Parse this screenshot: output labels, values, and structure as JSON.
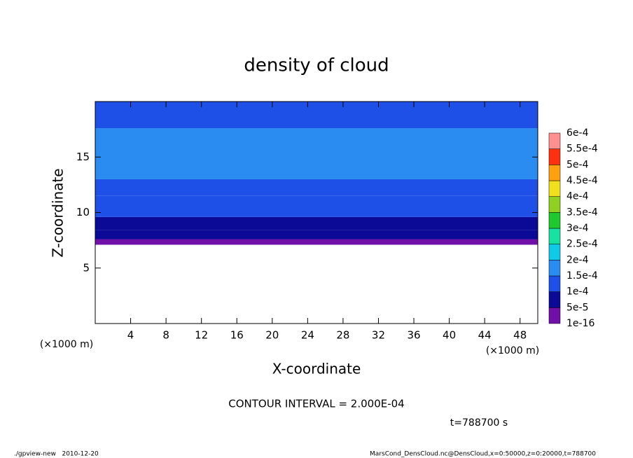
{
  "chart_data": {
    "type": "contour",
    "title": "density of cloud",
    "x_label": "X-coordinate",
    "y_label": "Z-coordinate",
    "x_unit": "(×1000 m)",
    "y_unit": "(×1000 m)",
    "xlim": [
      0,
      50
    ],
    "ylim": [
      0,
      20
    ],
    "xticks": [
      4,
      8,
      12,
      16,
      20,
      24,
      28,
      32,
      36,
      40,
      44,
      48
    ],
    "yticks": [
      5,
      10,
      15
    ],
    "profile": {
      "z": [
        7.1,
        7.6,
        8.4,
        9.6,
        11.5,
        13,
        17.6
      ],
      "values": [
        2e-05,
        7e-05,
        9e-05,
        0.00011,
        0.00013,
        0.000155,
        0.00014
      ]
    },
    "colorbar": {
      "levels": [
        {
          "value": 1e-16,
          "label": "1e-16"
        },
        {
          "value": 5e-05,
          "label": "5e-5"
        },
        {
          "value": 0.0001,
          "label": "1e-4"
        },
        {
          "value": 0.00015,
          "label": "1.5e-4"
        },
        {
          "value": 0.0002,
          "label": "2e-4"
        },
        {
          "value": 0.00025,
          "label": "2.5e-4"
        },
        {
          "value": 0.0003,
          "label": "3e-4"
        },
        {
          "value": 0.00035,
          "label": "3.5e-4"
        },
        {
          "value": 0.0004,
          "label": "4e-4"
        },
        {
          "value": 0.00045,
          "label": "4.5e-4"
        },
        {
          "value": 0.0005,
          "label": "5e-4"
        },
        {
          "value": 0.00055,
          "label": "5.5e-4"
        },
        {
          "value": 0.0006,
          "label": "6e-4"
        }
      ],
      "colors": [
        "#7010a8",
        "#0a0a96",
        "#1e50e8",
        "#2a8cf0",
        "#10c8e8",
        "#18e0a0",
        "#20c830",
        "#90d020",
        "#f0e020",
        "#ffa010",
        "#ff3010",
        "#ff9090"
      ]
    },
    "contour_interval": "CONTOUR INTERVAL = 2.000E-04",
    "time_label": "t=788700 s",
    "footer_left": "./gpview-new   2010-12-20",
    "footer_right": "MarsCond_DensCloud.nc@DensCloud,x=0:50000,z=0:20000,t=788700"
  }
}
